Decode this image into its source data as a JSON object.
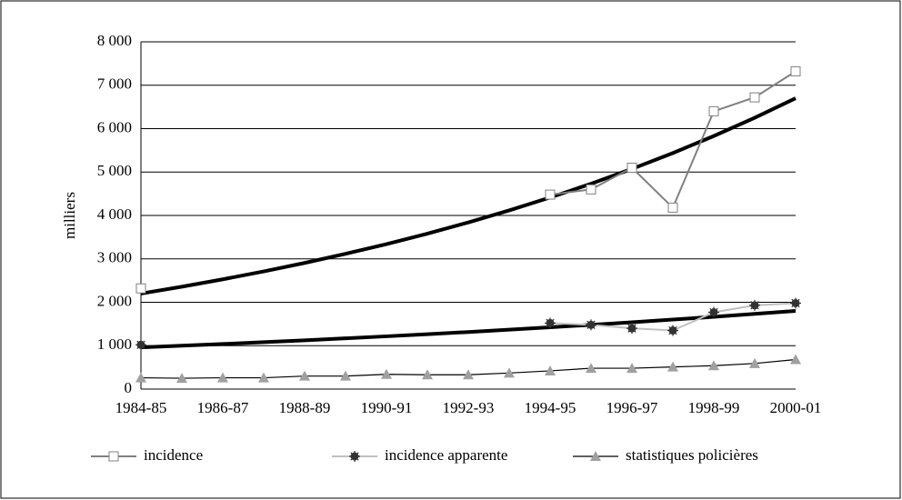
{
  "chart_data": {
    "type": "line",
    "y_label": "milliers",
    "categories": [
      "1984-85",
      null,
      "1986-87",
      null,
      "1988-89",
      null,
      "1990-91",
      null,
      "1992-93",
      null,
      "1994-95",
      null,
      "1996-97",
      null,
      "1998-99",
      null,
      "2000-01"
    ],
    "ylim": [
      0,
      8000
    ],
    "yticks": [
      0,
      {
        "value": 1000,
        "label": "1 000"
      },
      {
        "value": 2000,
        "label": "2 000"
      },
      {
        "value": 3000,
        "label": "3 000"
      },
      {
        "value": 4000,
        "label": "4 000"
      },
      {
        "value": 5000,
        "label": "5 000"
      },
      {
        "value": 6000,
        "label": "6 000"
      },
      {
        "value": 7000,
        "label": "7 000"
      },
      {
        "value": 8000,
        "label": "8 000"
      }
    ],
    "grid": true,
    "legend": "bottom",
    "series": [
      {
        "name": "incidence",
        "color": "#808080",
        "marker": "square",
        "values": [
          2320,
          null,
          null,
          null,
          null,
          null,
          null,
          null,
          null,
          null,
          4480,
          4600,
          5100,
          4180,
          6400,
          6720,
          7320
        ]
      },
      {
        "name": "incidence apparente",
        "color": "#c0c0c0",
        "marker": "star",
        "values": [
          1020,
          null,
          null,
          null,
          null,
          null,
          null,
          null,
          null,
          null,
          1520,
          1480,
          1400,
          1350,
          1770,
          1930,
          1980
        ]
      },
      {
        "name": "statistiques policières",
        "color": "#000000",
        "marker": "triangle",
        "values": [
          260,
          250,
          260,
          260,
          300,
          300,
          340,
          330,
          330,
          370,
          420,
          480,
          480,
          510,
          540,
          590,
          680
        ]
      }
    ],
    "trendlines": [
      {
        "color": "#000000",
        "values": [
          2200,
          2359,
          2529,
          2711,
          2906,
          3116,
          3340,
          3581,
          3839,
          4116,
          4413,
          4731,
          5072,
          5438,
          5830,
          6250,
          6700
        ]
      },
      {
        "color": "#000000",
        "values": [
          960,
          999,
          1039,
          1080,
          1124,
          1169,
          1216,
          1264,
          1315,
          1368,
          1423,
          1480,
          1539,
          1601,
          1665,
          1732,
          1800
        ]
      }
    ]
  }
}
